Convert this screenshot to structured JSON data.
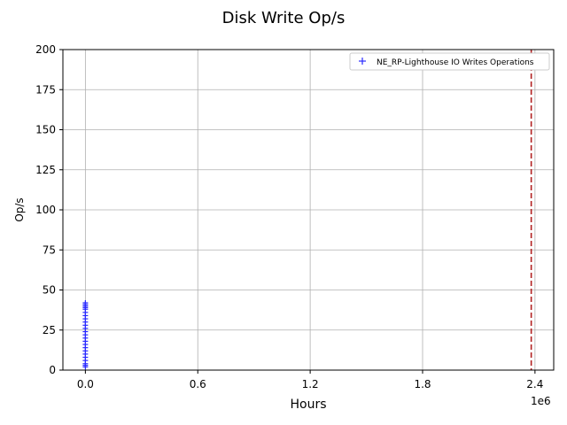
{
  "chart_data": {
    "type": "scatter",
    "title": "Disk Write Op/s",
    "xlabel": "Hours",
    "ylabel": "Op/s",
    "x_offset_label": "1e6",
    "x_ticks": [
      0.0,
      0.6,
      1.2,
      1.8,
      2.4
    ],
    "x_tick_labels": [
      "0.0",
      "0.6",
      "1.2",
      "1.8",
      "2.4"
    ],
    "y_ticks": [
      0,
      25,
      50,
      75,
      100,
      125,
      150,
      175,
      200
    ],
    "y_tick_labels": [
      "0",
      "25",
      "50",
      "75",
      "100",
      "125",
      "150",
      "175",
      "200"
    ],
    "xlim": [
      -0.12,
      2.5
    ],
    "ylim": [
      0,
      200
    ],
    "grid": true,
    "legend_position": "top-right",
    "series": [
      {
        "name": "NE_RP-Lighthouse IO Writes Operations",
        "color": "#2a2aff",
        "marker": "+",
        "x": [
          0,
          0,
          0,
          0,
          0,
          0,
          0,
          0,
          0,
          0,
          0,
          0,
          0,
          0,
          0,
          0,
          0,
          0,
          0,
          0,
          0,
          0,
          0,
          0
        ],
        "y": [
          2,
          4,
          6,
          8,
          10,
          12,
          14,
          16,
          18,
          20,
          22,
          24,
          26,
          28,
          30,
          32,
          34,
          36,
          38,
          39,
          40,
          41,
          42,
          3
        ]
      }
    ],
    "reference_line": {
      "type": "vertical",
      "style": "dashed",
      "color": "#b22222",
      "x": 2.38
    }
  }
}
